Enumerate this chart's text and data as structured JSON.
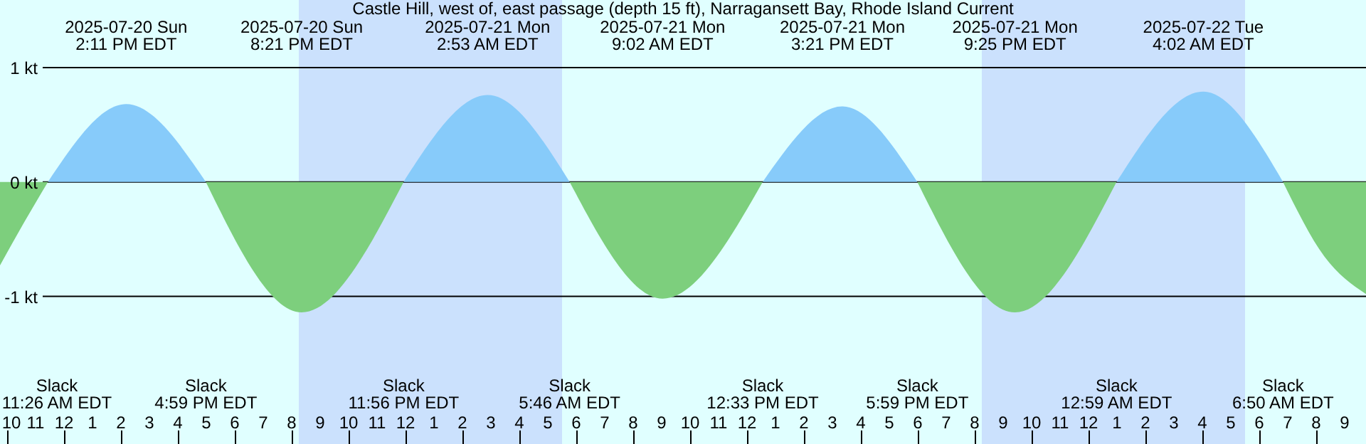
{
  "chart_data": {
    "type": "area",
    "title": "Castle Hill, west of, east passage (depth 15 ft), Narragansett Bay, Rhode Island Current",
    "series": [
      {
        "color": "#7dcf7d",
        "x": [
          "2025-07-20T09:45",
          "2025-07-20T10:35",
          "2025-07-20T11:26"
        ],
        "values": [
          -0.73,
          -0.36,
          0
        ]
      },
      {
        "color": "#87cbfa",
        "x": [
          "2025-07-20T11:26",
          "2025-07-20T14:11",
          "2025-07-20T16:59"
        ],
        "values": [
          0,
          0.68,
          0
        ]
      },
      {
        "color": "#7dcf7d",
        "x": [
          "2025-07-20T16:59",
          "2025-07-20T20:21",
          "2025-07-20T23:56"
        ],
        "values": [
          0,
          -1.14,
          0
        ]
      },
      {
        "color": "#87cbfa",
        "x": [
          "2025-07-20T23:56",
          "2025-07-21T02:53",
          "2025-07-21T05:46"
        ],
        "values": [
          0,
          0.76,
          0
        ]
      },
      {
        "color": "#7dcf7d",
        "x": [
          "2025-07-21T05:46",
          "2025-07-21T09:02",
          "2025-07-21T12:33"
        ],
        "values": [
          0,
          -1.02,
          0
        ]
      },
      {
        "color": "#87cbfa",
        "x": [
          "2025-07-21T12:33",
          "2025-07-21T15:21",
          "2025-07-21T17:59"
        ],
        "values": [
          0,
          0.66,
          0
        ]
      },
      {
        "color": "#7dcf7d",
        "x": [
          "2025-07-21T17:59",
          "2025-07-21T21:25",
          "2025-07-22T00:59"
        ],
        "values": [
          0,
          -1.14,
          0
        ]
      },
      {
        "color": "#87cbfa",
        "x": [
          "2025-07-22T00:59",
          "2025-07-22T04:02",
          "2025-07-22T06:50"
        ],
        "values": [
          0,
          0.79,
          0
        ]
      },
      {
        "color": "#7dcf7d",
        "x": [
          "2025-07-22T06:50",
          "2025-07-22T08:17",
          "2025-07-22T09:45"
        ],
        "values": [
          0,
          -0.65,
          -0.98
        ]
      }
    ],
    "xlim": [
      "2025-07-20T09:45",
      "2025-07-22T09:45"
    ],
    "xticks": [
      {
        "value": "2025-07-20T10:00",
        "label": "10"
      },
      {
        "value": "2025-07-20T11:00",
        "label": "11"
      },
      {
        "value": "2025-07-20T12:00",
        "label": "12"
      },
      {
        "value": "2025-07-20T13:00",
        "label": "1"
      },
      {
        "value": "2025-07-20T14:00",
        "label": "2"
      },
      {
        "value": "2025-07-20T15:00",
        "label": "3"
      },
      {
        "value": "2025-07-20T16:00",
        "label": "4"
      },
      {
        "value": "2025-07-20T17:00",
        "label": "5"
      },
      {
        "value": "2025-07-20T18:00",
        "label": "6"
      },
      {
        "value": "2025-07-20T19:00",
        "label": "7"
      },
      {
        "value": "2025-07-20T20:00",
        "label": "8"
      },
      {
        "value": "2025-07-20T21:00",
        "label": "9"
      },
      {
        "value": "2025-07-20T22:00",
        "label": "10"
      },
      {
        "value": "2025-07-20T23:00",
        "label": "11"
      },
      {
        "value": "2025-07-21T00:00",
        "label": "12"
      },
      {
        "value": "2025-07-21T01:00",
        "label": "1"
      },
      {
        "value": "2025-07-21T02:00",
        "label": "2"
      },
      {
        "value": "2025-07-21T03:00",
        "label": "3"
      },
      {
        "value": "2025-07-21T04:00",
        "label": "4"
      },
      {
        "value": "2025-07-21T05:00",
        "label": "5"
      },
      {
        "value": "2025-07-21T06:00",
        "label": "6"
      },
      {
        "value": "2025-07-21T07:00",
        "label": "7"
      },
      {
        "value": "2025-07-21T08:00",
        "label": "8"
      },
      {
        "value": "2025-07-21T09:00",
        "label": "9"
      },
      {
        "value": "2025-07-21T10:00",
        "label": "10"
      },
      {
        "value": "2025-07-21T11:00",
        "label": "11"
      },
      {
        "value": "2025-07-21T12:00",
        "label": "12"
      },
      {
        "value": "2025-07-21T13:00",
        "label": "1"
      },
      {
        "value": "2025-07-21T14:00",
        "label": "2"
      },
      {
        "value": "2025-07-21T15:00",
        "label": "3"
      },
      {
        "value": "2025-07-21T16:00",
        "label": "4"
      },
      {
        "value": "2025-07-21T17:00",
        "label": "5"
      },
      {
        "value": "2025-07-21T18:00",
        "label": "6"
      },
      {
        "value": "2025-07-21T19:00",
        "label": "7"
      },
      {
        "value": "2025-07-21T20:00",
        "label": "8"
      },
      {
        "value": "2025-07-21T21:00",
        "label": "9"
      },
      {
        "value": "2025-07-21T22:00",
        "label": "10"
      },
      {
        "value": "2025-07-21T23:00",
        "label": "11"
      },
      {
        "value": "2025-07-22T00:00",
        "label": "12"
      },
      {
        "value": "2025-07-22T01:00",
        "label": "1"
      },
      {
        "value": "2025-07-22T02:00",
        "label": "2"
      },
      {
        "value": "2025-07-22T03:00",
        "label": "3"
      },
      {
        "value": "2025-07-22T04:00",
        "label": "4"
      },
      {
        "value": "2025-07-22T05:00",
        "label": "5"
      },
      {
        "value": "2025-07-22T06:00",
        "label": "6"
      },
      {
        "value": "2025-07-22T07:00",
        "label": "7"
      },
      {
        "value": "2025-07-22T08:00",
        "label": "8"
      },
      {
        "value": "2025-07-22T09:00",
        "label": "9"
      }
    ],
    "ylim": [
      -2.29,
      1.59
    ],
    "yticks": [
      {
        "value": 1,
        "label": "1 kt"
      },
      {
        "value": 0,
        "label": "0 kt"
      },
      {
        "value": -1,
        "label": "-1 kt"
      }
    ],
    "grid": "y",
    "bands": [
      {
        "axis": "x",
        "from": "2025-07-20T20:15",
        "to": "2025-07-21T05:30",
        "color": "#cbe1fd"
      },
      {
        "axis": "x",
        "from": "2025-07-21T20:15",
        "to": "2025-07-22T05:30",
        "color": "#cbe1fd"
      }
    ],
    "annotations": [
      "2025-07-20 Sun\n2:11 PM EDT",
      "2025-07-20 Sun\n8:21 PM EDT",
      "2025-07-21 Mon\n2:53 AM EDT",
      "2025-07-21 Mon\n9:02 AM EDT",
      "2025-07-21 Mon\n3:21 PM EDT",
      "2025-07-21 Mon\n9:25 PM EDT",
      "2025-07-22 Tue\n4:02 AM EDT",
      "Slack\n11:26 AM EDT",
      "Slack\n4:59 PM EDT",
      "Slack\n11:56 PM EDT",
      "Slack\n5:46 AM EDT",
      "Slack\n12:33 PM EDT",
      "Slack\n5:59 PM EDT",
      "Slack\n12:59 AM EDT",
      "Slack\n6:50 AM EDT"
    ]
  }
}
